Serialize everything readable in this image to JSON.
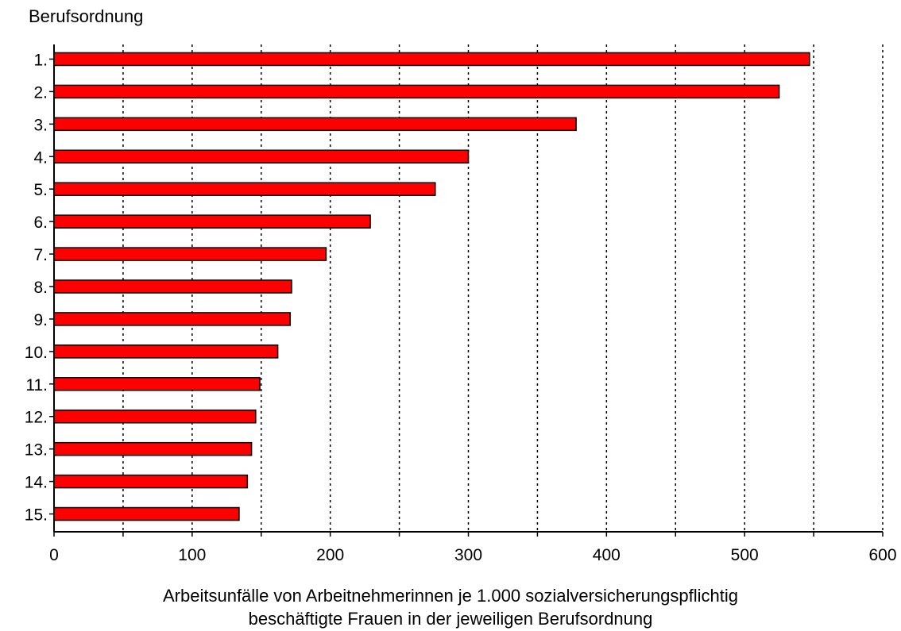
{
  "chart_data": {
    "type": "bar",
    "orientation": "horizontal",
    "ylabel": "Berufsordnung",
    "xlabel_lines": [
      "Arbeitsunfälle von Arbeitnehmerinnen je 1.000 sozialversicherungspflichtig",
      "beschäftigte Frauen in der jeweiligen Berufsordnung"
    ],
    "categories": [
      "1.",
      "2.",
      "3.",
      "4.",
      "5.",
      "6.",
      "7.",
      "8.",
      "9.",
      "10.",
      "11.",
      "12.",
      "13.",
      "14.",
      "15."
    ],
    "values": [
      547,
      525,
      378,
      300,
      276,
      229,
      197,
      172,
      171,
      162,
      149,
      146,
      143,
      140,
      134
    ],
    "xlim": [
      0,
      600
    ],
    "x_ticks": [
      0,
      100,
      200,
      300,
      400,
      500,
      600
    ],
    "gridlines": [
      50,
      100,
      150,
      200,
      250,
      300,
      350,
      400,
      450,
      500,
      550,
      600
    ],
    "grid": "dotted vertical",
    "bar_color": "#ff0000",
    "bar_edge_color": "#000000"
  }
}
